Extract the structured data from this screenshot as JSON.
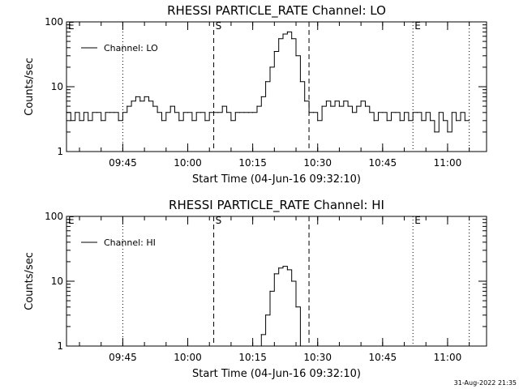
{
  "chart_data": [
    {
      "type": "line",
      "title": "RHESSI PARTICLE_RATE Channel: LO",
      "xlabel": "Start Time (04-Jun-16 09:32:10)",
      "ylabel": "Counts/sec",
      "yscale": "log",
      "ylim": [
        1,
        100
      ],
      "xlim": [
        "09:32",
        "11:09"
      ],
      "x_ticks": [
        "09:45",
        "10:00",
        "10:15",
        "10:30",
        "10:45",
        "11:00"
      ],
      "y_ticks": [
        "1",
        "10",
        "100"
      ],
      "grid": false,
      "legend": "top-left",
      "markers": [
        {
          "time": "09:32",
          "label": "E",
          "style": "dotted"
        },
        {
          "time": "09:45",
          "label": "",
          "style": "dotted"
        },
        {
          "time": "10:06",
          "label": "S",
          "style": "dashed"
        },
        {
          "time": "10:28",
          "label": "",
          "style": "dashed"
        },
        {
          "time": "10:52",
          "label": "E",
          "style": "dotted"
        },
        {
          "time": "11:05",
          "label": "",
          "style": "dotted"
        }
      ],
      "series": [
        {
          "name": "Channel: LO",
          "x": [
            "09:32",
            "09:33",
            "09:34",
            "09:35",
            "09:36",
            "09:37",
            "09:38",
            "09:39",
            "09:40",
            "09:41",
            "09:42",
            "09:43",
            "09:44",
            "09:45",
            "09:46",
            "09:47",
            "09:48",
            "09:49",
            "09:50",
            "09:51",
            "09:52",
            "09:53",
            "09:54",
            "09:55",
            "09:56",
            "09:57",
            "09:58",
            "09:59",
            "10:00",
            "10:01",
            "10:02",
            "10:03",
            "10:04",
            "10:05",
            "10:06",
            "10:07",
            "10:08",
            "10:09",
            "10:10",
            "10:11",
            "10:12",
            "10:13",
            "10:14",
            "10:15",
            "10:16",
            "10:17",
            "10:18",
            "10:19",
            "10:20",
            "10:21",
            "10:22",
            "10:23",
            "10:24",
            "10:25",
            "10:26",
            "10:27",
            "10:28",
            "10:29",
            "10:30",
            "10:31",
            "10:32",
            "10:33",
            "10:34",
            "10:35",
            "10:36",
            "10:37",
            "10:38",
            "10:39",
            "10:40",
            "10:41",
            "10:42",
            "10:43",
            "10:44",
            "10:45",
            "10:46",
            "10:47",
            "10:48",
            "10:49",
            "10:50",
            "10:51",
            "10:52",
            "10:53",
            "10:54",
            "10:55",
            "10:56",
            "10:57",
            "10:58",
            "10:59",
            "11:00",
            "11:01",
            "11:02",
            "11:03",
            "11:04",
            "11:05"
          ],
          "y": [
            4,
            3,
            4,
            3,
            4,
            3,
            4,
            4,
            3,
            4,
            4,
            4,
            3,
            4,
            5,
            6,
            7,
            6,
            7,
            6,
            5,
            4,
            3,
            4,
            5,
            4,
            3,
            4,
            4,
            3,
            4,
            4,
            3,
            4,
            4,
            4,
            5,
            4,
            3,
            4,
            4,
            4,
            4,
            4,
            5,
            7,
            12,
            20,
            35,
            55,
            65,
            70,
            55,
            30,
            12,
            6,
            4,
            4,
            3,
            5,
            6,
            5,
            6,
            5,
            6,
            5,
            4,
            5,
            6,
            5,
            4,
            3,
            4,
            4,
            3,
            4,
            4,
            3,
            4,
            3,
            4,
            4,
            3,
            4,
            3,
            2,
            4,
            3,
            2,
            4,
            3,
            4,
            3,
            3
          ]
        }
      ]
    },
    {
      "type": "line",
      "title": "RHESSI PARTICLE_RATE Channel: HI",
      "xlabel": "Start Time (04-Jun-16 09:32:10)",
      "ylabel": "Counts/sec",
      "yscale": "log",
      "ylim": [
        1,
        100
      ],
      "xlim": [
        "09:32",
        "11:09"
      ],
      "x_ticks": [
        "09:45",
        "10:00",
        "10:15",
        "10:30",
        "10:45",
        "11:00"
      ],
      "y_ticks": [
        "1",
        "10",
        "100"
      ],
      "grid": false,
      "legend": "top-left",
      "markers": [
        {
          "time": "09:32",
          "label": "E",
          "style": "dotted"
        },
        {
          "time": "09:45",
          "label": "",
          "style": "dotted"
        },
        {
          "time": "10:06",
          "label": "S",
          "style": "dashed"
        },
        {
          "time": "10:28",
          "label": "",
          "style": "dashed"
        },
        {
          "time": "10:52",
          "label": "E",
          "style": "dotted"
        },
        {
          "time": "11:05",
          "label": "",
          "style": "dotted"
        }
      ],
      "series": [
        {
          "name": "Channel: HI",
          "x": [
            "10:16",
            "10:17",
            "10:18",
            "10:19",
            "10:20",
            "10:21",
            "10:22",
            "10:23",
            "10:24",
            "10:25",
            "10:26"
          ],
          "y": [
            1,
            1.5,
            3,
            7,
            13,
            16,
            17,
            15,
            10,
            4,
            1
          ]
        }
      ]
    }
  ],
  "footer": {
    "timestamp": "31-Aug-2022 21:35"
  }
}
